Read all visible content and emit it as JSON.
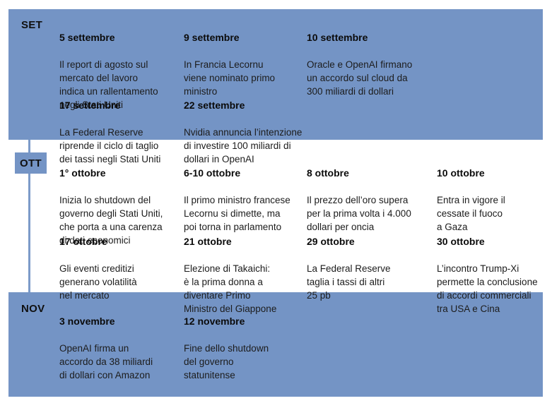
{
  "colors": {
    "band_blue": "#7494c5",
    "connector_blue": "#7c9bc9",
    "text": "#1c1c1c",
    "background": "#ffffff"
  },
  "sections": [
    {
      "label": "SET",
      "rows": [
        {
          "events": [
            {
              "date": "5 settembre",
              "text": "Il report di agosto sul\nmercato del lavoro\nindica un rallentamento\nnegli Stati Uniti"
            },
            {
              "date": "9 settembre",
              "text": "In Francia Lecornu\nviene nominato primo\nministro"
            },
            {
              "date": "10 settembre",
              "text": "Oracle e OpenAI firmano\nun accordo sul cloud da\n300 miliardi di dollari"
            }
          ]
        },
        {
          "events": [
            {
              "date": "17 settembre",
              "text": "La Federal Reserve\nriprende il ciclo di taglio\ndei tassi negli Stati Uniti"
            },
            {
              "date": "22 settembre",
              "text": "Nvidia annuncia l’intenzione\ndi investire 100 miliardi di\ndollari in OpenAI"
            }
          ]
        }
      ]
    },
    {
      "label": "OTT",
      "rows": [
        {
          "events": [
            {
              "date": "1° ottobre",
              "text": "Inizia lo shutdown del\ngoverno degli Stati Uniti,\nche porta a una carenza\ndi dati economici"
            },
            {
              "date": "6-10 ottobre",
              "text": "Il primo ministro francese\nLecornu si dimette, ma\npoi torna in parlamento"
            },
            {
              "date": "8 ottobre",
              "text": "Il prezzo dell’oro supera\nper la prima volta i 4.000\ndollari per oncia"
            },
            {
              "date": "10 ottobre",
              "text": "Entra in vigore il\ncessate il fuoco\na Gaza"
            }
          ]
        },
        {
          "events": [
            {
              "date": "17 ottobre",
              "text": "Gli eventi creditizi\ngenerano volatilità\nnel mercato"
            },
            {
              "date": "21 ottobre",
              "text": "Elezione di Takaichi:\nè la prima donna a\ndiventare Primo\nMinistro del Giappone"
            },
            {
              "date": "29 ottobre",
              "text": "La Federal Reserve\ntaglia i tassi di altri\n25 pb"
            },
            {
              "date": "30 ottobre",
              "text": "L’incontro Trump-Xi\npermette la conclusione\ndi accordi commerciali\ntra USA e Cina"
            }
          ]
        }
      ]
    },
    {
      "label": "NOV",
      "rows": [
        {
          "events": [
            {
              "date": "3 novembre",
              "text": "OpenAI firma un\naccordo da 38 miliardi\ndi dollari con Amazon"
            },
            {
              "date": "12 novembre",
              "text": "Fine dello shutdown\ndel governo\nstatunitense"
            }
          ]
        }
      ]
    }
  ]
}
